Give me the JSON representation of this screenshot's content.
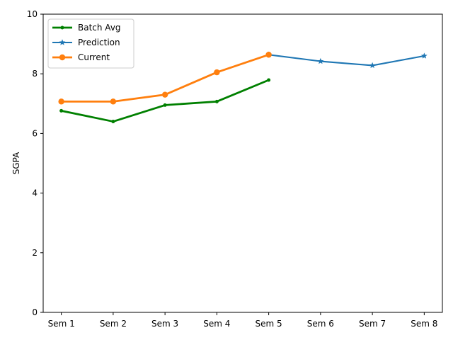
{
  "chart_data": {
    "type": "line",
    "categories": [
      "Sem 1",
      "Sem 2",
      "Sem 3",
      "Sem 4",
      "Sem 5",
      "Sem 6",
      "Sem 7",
      "Sem 8"
    ],
    "ylabel": "SGPA",
    "xlabel": "",
    "ylim": [
      0,
      10
    ],
    "yticks": [
      0,
      2,
      4,
      6,
      8,
      10
    ],
    "grid": false,
    "legend_position": "top-left",
    "series": [
      {
        "name": "Batch Avg",
        "color": "#008000",
        "marker": "dot",
        "x": [
          "Sem 1",
          "Sem 2",
          "Sem 3",
          "Sem 4",
          "Sem 5"
        ],
        "values": [
          6.76,
          6.4,
          6.95,
          7.07,
          7.79
        ]
      },
      {
        "name": "Prediction",
        "color": "#1f77b4",
        "marker": "star",
        "x": [
          "Sem 5",
          "Sem 6",
          "Sem 7",
          "Sem 8"
        ],
        "values": [
          8.64,
          8.42,
          8.28,
          8.6
        ]
      },
      {
        "name": "Current",
        "color": "#ff7f0e",
        "marker": "circle",
        "x": [
          "Sem 1",
          "Sem 2",
          "Sem 3",
          "Sem 4",
          "Sem 5"
        ],
        "values": [
          7.07,
          7.07,
          7.3,
          8.05,
          8.64
        ]
      }
    ]
  }
}
